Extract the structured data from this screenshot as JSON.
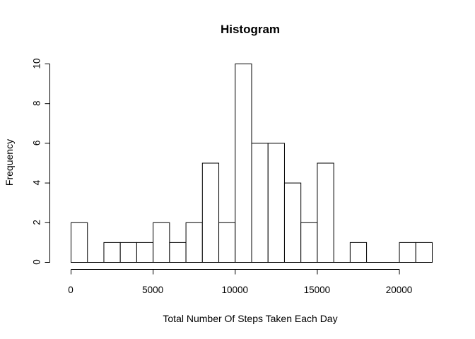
{
  "chart_data": {
    "type": "bar",
    "title": "Histogram",
    "xlabel": "Total Number Of Steps Taken Each Day",
    "ylabel": "Frequency",
    "bin_width": 1000,
    "bin_starts": [
      0,
      1000,
      2000,
      3000,
      4000,
      5000,
      6000,
      7000,
      8000,
      9000,
      10000,
      11000,
      12000,
      13000,
      14000,
      15000,
      16000,
      17000,
      18000,
      19000,
      20000,
      21000
    ],
    "values": [
      2,
      0,
      1,
      1,
      1,
      2,
      1,
      2,
      5,
      2,
      10,
      6,
      6,
      4,
      2,
      5,
      0,
      1,
      0,
      0,
      1,
      1
    ],
    "xlim": [
      0,
      22000
    ],
    "ylim": [
      0,
      10
    ],
    "x_ticks": [
      0,
      5000,
      10000,
      15000,
      20000
    ],
    "x_tick_labels": [
      "0",
      "5000",
      "10000",
      "15000",
      "20000"
    ],
    "y_ticks": [
      0,
      2,
      4,
      6,
      8,
      10
    ],
    "y_tick_labels": [
      "0",
      "2",
      "4",
      "6",
      "8",
      "10"
    ],
    "grid": false,
    "bar_fill": "#ffffff",
    "bar_stroke": "#000000"
  }
}
